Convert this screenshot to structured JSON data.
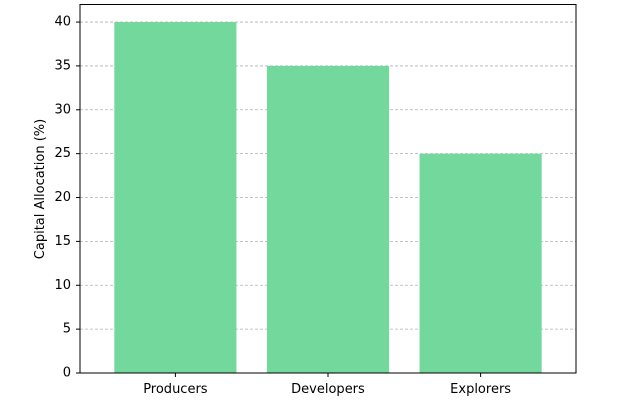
{
  "chart_data": {
    "type": "bar",
    "categories": [
      "Producers",
      "Developers",
      "Explorers"
    ],
    "values": [
      40,
      35,
      25
    ],
    "title": "",
    "xlabel": "",
    "ylabel": "Capital Allocation (%)",
    "ylim": [
      0,
      40
    ],
    "yticks": [
      0,
      5,
      10,
      15,
      20,
      25,
      30,
      35,
      40
    ],
    "grid": "y-axis dashed",
    "legend": "none",
    "bar_color": "#72d89b"
  }
}
